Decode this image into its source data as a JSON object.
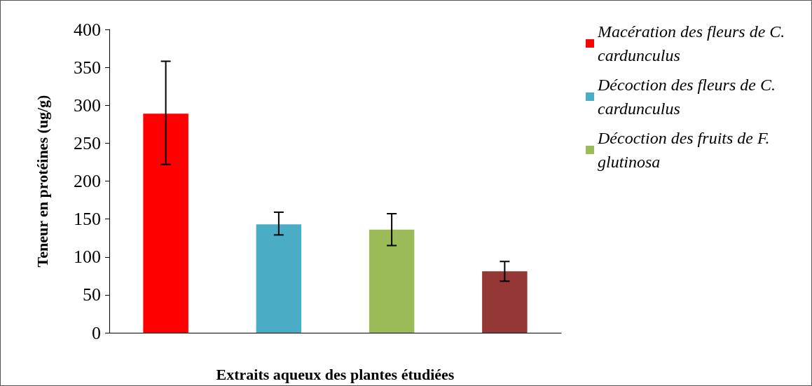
{
  "chart_data": {
    "type": "bar",
    "xlabel": "Extraits aqueux des plantes étudiées",
    "ylabel": "Teneur en protéines (ug/g)",
    "categories": [
      null,
      null,
      null,
      null
    ],
    "series": [
      {
        "name": "Macération des fleurs de C. cardunculus",
        "color": "#ff0000",
        "values": [
          289,
          null,
          null,
          null
        ],
        "errors": [
          [
            222,
            358
          ],
          null,
          null,
          null
        ]
      },
      {
        "name": "Décoction des fleurs de C. cardunculus",
        "color": "#4bacc6",
        "values": [
          null,
          143,
          null,
          null
        ],
        "errors": [
          null,
          [
            129,
            159
          ],
          null,
          null
        ]
      },
      {
        "name": "Décoction des fruits de F. glutinosa",
        "color": "#9bbb59",
        "values": [
          null,
          null,
          136,
          null
        ],
        "errors": [
          null,
          null,
          [
            115,
            157
          ],
          null
        ]
      },
      {
        "color": "#953735",
        "values": [
          null,
          null,
          null,
          81
        ],
        "errors": [
          null,
          null,
          null,
          [
            68,
            94
          ]
        ]
      }
    ],
    "ylim": [
      0,
      400
    ],
    "yticks": [
      0,
      50,
      100,
      150,
      200,
      250,
      300,
      350,
      400
    ],
    "grid": false,
    "legend": "top right"
  }
}
